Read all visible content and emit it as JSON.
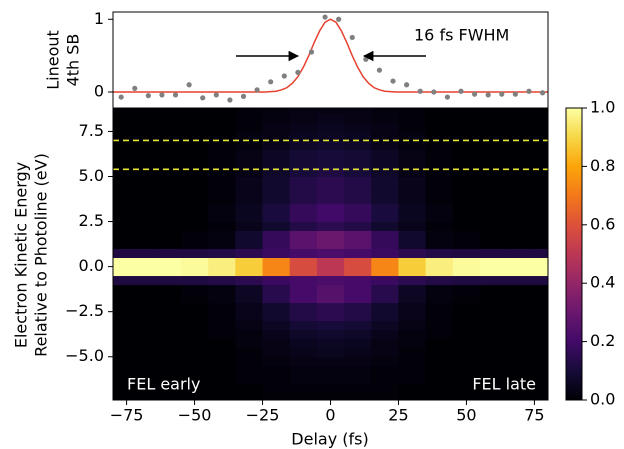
{
  "chart_data": [
    {
      "type": "scatter",
      "ylabel": [
        "Lineout",
        "4th SB"
      ],
      "annotation": "16 fs FWHM",
      "xlim": [
        -80,
        80
      ],
      "ylim": [
        -0.22,
        1.1
      ],
      "yticks": [
        0,
        1
      ],
      "points": {
        "color": "#808080",
        "x": [
          -77,
          -72,
          -67,
          -62,
          -57,
          -52,
          -47,
          -42,
          -37,
          -32,
          -27,
          -22,
          -17,
          -12,
          -7,
          -2,
          3,
          8,
          13,
          18,
          23,
          28,
          33,
          38,
          43,
          48,
          53,
          58,
          63,
          68,
          73,
          78
        ],
        "values": [
          -0.07,
          0.05,
          -0.05,
          -0.04,
          -0.04,
          0.1,
          -0.08,
          -0.04,
          -0.11,
          -0.06,
          0.03,
          0.14,
          0.22,
          0.27,
          0.55,
          1.03,
          1.0,
          0.75,
          0.45,
          0.3,
          0.15,
          0.1,
          0.01,
          0,
          -0.07,
          0.01,
          -0.03,
          -0.04,
          -0.03,
          -0.03,
          0.01,
          -0.01
        ]
      },
      "fit": {
        "color": "#e8412f",
        "x": [
          -80,
          -40,
          -24,
          -20,
          -18,
          -16,
          -14,
          -12,
          -10,
          -8,
          -6,
          -4,
          -2,
          0,
          2,
          4,
          6,
          8,
          10,
          12,
          14,
          16,
          18,
          20,
          24,
          40,
          80
        ],
        "values": [
          0,
          0,
          0,
          0.01,
          0.03,
          0.06,
          0.12,
          0.21,
          0.34,
          0.5,
          0.68,
          0.84,
          0.96,
          1,
          0.96,
          0.84,
          0.68,
          0.5,
          0.34,
          0.21,
          0.12,
          0.06,
          0.03,
          0.01,
          0,
          0,
          0
        ]
      }
    },
    {
      "type": "heatmap",
      "ylabel": [
        "Electron Kinetic Energy",
        "Relative to Photoline (eV)"
      ],
      "xlabel": "Delay (fs)",
      "annotations": [
        "FEL early",
        "FEL late"
      ],
      "colormap": "inferno",
      "xlim": [
        -80,
        80
      ],
      "ylim": [
        -7.4,
        8.8
      ],
      "xticks": [
        {
          "value": -75,
          "label": "−75"
        },
        {
          "value": -50,
          "label": "−50"
        },
        {
          "value": -25,
          "label": "−25"
        },
        0,
        25,
        50,
        75
      ],
      "yticks": [
        7.5,
        {
          "value": 5,
          "label": "5.0"
        },
        2.5,
        {
          "value": 0,
          "label": "0.0"
        },
        {
          "value": -2.5,
          "label": "−2.5"
        },
        {
          "value": -5,
          "label": "−5.0"
        }
      ],
      "hlines": {
        "color": "#e6e632",
        "values": [
          7,
          5.4
        ]
      },
      "x": [
        -80,
        -70,
        -60,
        -50,
        -40,
        -30,
        -20,
        -10,
        0,
        10,
        20,
        30,
        40,
        50,
        60,
        70,
        80
      ],
      "y": [
        -7.25,
        -6.75,
        -6.25,
        -5.75,
        -5.25,
        -4.75,
        -4.25,
        -3.75,
        -3.25,
        -2.75,
        -2.25,
        -1.75,
        -1.25,
        -0.75,
        -0.25,
        0.25,
        0.75,
        1.25,
        1.75,
        2.25,
        2.75,
        3.25,
        3.75,
        4.25,
        4.75,
        5.25,
        5.75,
        6.25,
        6.75,
        7.25,
        7.75,
        8.25,
        8.75
      ],
      "z": [
        [
          0,
          0,
          0,
          0,
          0,
          0,
          0.01,
          0.01,
          0.01,
          0.01,
          0.01,
          0,
          0,
          0,
          0,
          0,
          0
        ],
        [
          0,
          0,
          0,
          0,
          0,
          0,
          0.01,
          0.01,
          0.01,
          0.01,
          0.01,
          0,
          0,
          0,
          0,
          0,
          0
        ],
        [
          0,
          0,
          0,
          0,
          0,
          0.01,
          0.01,
          0.02,
          0.02,
          0.02,
          0.01,
          0.01,
          0,
          0,
          0,
          0,
          0
        ],
        [
          0,
          0,
          0,
          0,
          0,
          0.01,
          0.01,
          0.02,
          0.02,
          0.02,
          0.01,
          0.01,
          0,
          0,
          0,
          0,
          0
        ],
        [
          0,
          0,
          0,
          0,
          0,
          0.01,
          0.02,
          0.03,
          0.03,
          0.03,
          0.02,
          0.01,
          0,
          0,
          0,
          0,
          0
        ],
        [
          0,
          0,
          0,
          0,
          0,
          0.01,
          0.03,
          0.04,
          0.05,
          0.04,
          0.03,
          0.01,
          0,
          0,
          0,
          0,
          0
        ],
        [
          0,
          0,
          0,
          0,
          0,
          0.02,
          0.03,
          0.05,
          0.06,
          0.05,
          0.03,
          0.02,
          0,
          0,
          0,
          0,
          0
        ],
        [
          0,
          0,
          0,
          0,
          0.01,
          0.02,
          0.04,
          0.07,
          0.08,
          0.07,
          0.04,
          0.02,
          0.01,
          0,
          0,
          0,
          0
        ],
        [
          0,
          0,
          0,
          0,
          0.01,
          0.03,
          0.06,
          0.09,
          0.1,
          0.09,
          0.06,
          0.03,
          0.01,
          0,
          0,
          0,
          0
        ],
        [
          0,
          0,
          0,
          0,
          0.01,
          0.04,
          0.08,
          0.13,
          0.15,
          0.13,
          0.08,
          0.04,
          0.01,
          0,
          0,
          0,
          0
        ],
        [
          0,
          0,
          0,
          0,
          0.01,
          0.04,
          0.08,
          0.13,
          0.15,
          0.13,
          0.08,
          0.04,
          0.01,
          0,
          0,
          0,
          0
        ],
        [
          0,
          0,
          0,
          0.01,
          0.02,
          0.06,
          0.14,
          0.21,
          0.25,
          0.21,
          0.14,
          0.06,
          0.02,
          0.01,
          0,
          0,
          0
        ],
        [
          0,
          0,
          0,
          0.01,
          0.02,
          0.06,
          0.14,
          0.21,
          0.25,
          0.21,
          0.14,
          0.06,
          0.02,
          0.01,
          0,
          0,
          0
        ],
        [
          0.12,
          0.12,
          0.12,
          0.12,
          0.13,
          0.15,
          0.18,
          0.21,
          0.22,
          0.21,
          0.18,
          0.15,
          0.13,
          0.12,
          0.12,
          0.12,
          0.12
        ],
        [
          1,
          1,
          1,
          0.99,
          0.96,
          0.88,
          0.73,
          0.58,
          0.5,
          0.58,
          0.73,
          0.88,
          0.96,
          0.99,
          1,
          1,
          1
        ],
        [
          1,
          1,
          1,
          0.99,
          0.96,
          0.88,
          0.73,
          0.58,
          0.5,
          0.58,
          0.73,
          0.88,
          0.96,
          0.99,
          1,
          1,
          1
        ],
        [
          0.12,
          0.12,
          0.12,
          0.12,
          0.13,
          0.15,
          0.18,
          0.21,
          0.22,
          0.21,
          0.18,
          0.15,
          0.13,
          0.12,
          0.12,
          0.12,
          0.12
        ],
        [
          0,
          0,
          0,
          0.01,
          0.02,
          0.08,
          0.17,
          0.26,
          0.3,
          0.26,
          0.17,
          0.08,
          0.02,
          0.01,
          0,
          0,
          0
        ],
        [
          0,
          0,
          0,
          0.01,
          0.02,
          0.08,
          0.17,
          0.26,
          0.3,
          0.26,
          0.17,
          0.08,
          0.02,
          0.01,
          0,
          0,
          0
        ],
        [
          0,
          0,
          0,
          0,
          0.01,
          0.04,
          0.08,
          0.13,
          0.15,
          0.13,
          0.08,
          0.04,
          0.01,
          0,
          0,
          0,
          0
        ],
        [
          0,
          0,
          0,
          0,
          0.02,
          0.05,
          0.11,
          0.17,
          0.2,
          0.17,
          0.11,
          0.05,
          0.02,
          0,
          0,
          0,
          0
        ],
        [
          0,
          0,
          0,
          0,
          0.02,
          0.05,
          0.11,
          0.17,
          0.2,
          0.17,
          0.11,
          0.05,
          0.02,
          0,
          0,
          0,
          0
        ],
        [
          0,
          0,
          0,
          0,
          0.01,
          0.04,
          0.08,
          0.13,
          0.15,
          0.13,
          0.08,
          0.04,
          0.01,
          0,
          0,
          0,
          0
        ],
        [
          0,
          0,
          0,
          0,
          0.01,
          0.04,
          0.08,
          0.13,
          0.15,
          0.13,
          0.08,
          0.04,
          0.01,
          0,
          0,
          0,
          0
        ],
        [
          0,
          0,
          0,
          0,
          0.01,
          0.04,
          0.08,
          0.13,
          0.15,
          0.13,
          0.08,
          0.04,
          0.01,
          0,
          0,
          0,
          0
        ],
        [
          0,
          0,
          0,
          0,
          0.01,
          0.03,
          0.07,
          0.1,
          0.12,
          0.1,
          0.07,
          0.03,
          0.01,
          0,
          0,
          0,
          0
        ],
        [
          0,
          0,
          0,
          0,
          0.01,
          0.03,
          0.06,
          0.09,
          0.1,
          0.09,
          0.06,
          0.03,
          0.01,
          0,
          0,
          0,
          0
        ],
        [
          0,
          0,
          0,
          0,
          0.01,
          0.03,
          0.06,
          0.09,
          0.1,
          0.09,
          0.06,
          0.03,
          0.01,
          0,
          0,
          0,
          0
        ],
        [
          0,
          0,
          0,
          0,
          0.01,
          0.02,
          0.04,
          0.07,
          0.08,
          0.07,
          0.04,
          0.02,
          0.01,
          0,
          0,
          0,
          0
        ],
        [
          0,
          0,
          0,
          0,
          0,
          0.02,
          0.03,
          0.05,
          0.06,
          0.05,
          0.03,
          0.02,
          0,
          0,
          0,
          0,
          0
        ],
        [
          0,
          0,
          0,
          0,
          0,
          0.01,
          0.03,
          0.04,
          0.05,
          0.04,
          0.03,
          0.01,
          0,
          0,
          0,
          0,
          0
        ],
        [
          0,
          0,
          0,
          0,
          0,
          0.01,
          0.02,
          0.03,
          0.04,
          0.03,
          0.02,
          0.01,
          0,
          0,
          0,
          0,
          0
        ],
        [
          0,
          0,
          0,
          0,
          0,
          0.01,
          0.02,
          0.03,
          0.03,
          0.03,
          0.02,
          0.01,
          0,
          0,
          0,
          0,
          0
        ]
      ],
      "colorbar": {
        "lim": [
          0,
          1
        ],
        "ticks": [
          {
            "value": 0,
            "label": "0.0"
          },
          0.2,
          0.4,
          0.6,
          0.8,
          {
            "value": 1,
            "label": "1.0"
          }
        ]
      }
    }
  ]
}
